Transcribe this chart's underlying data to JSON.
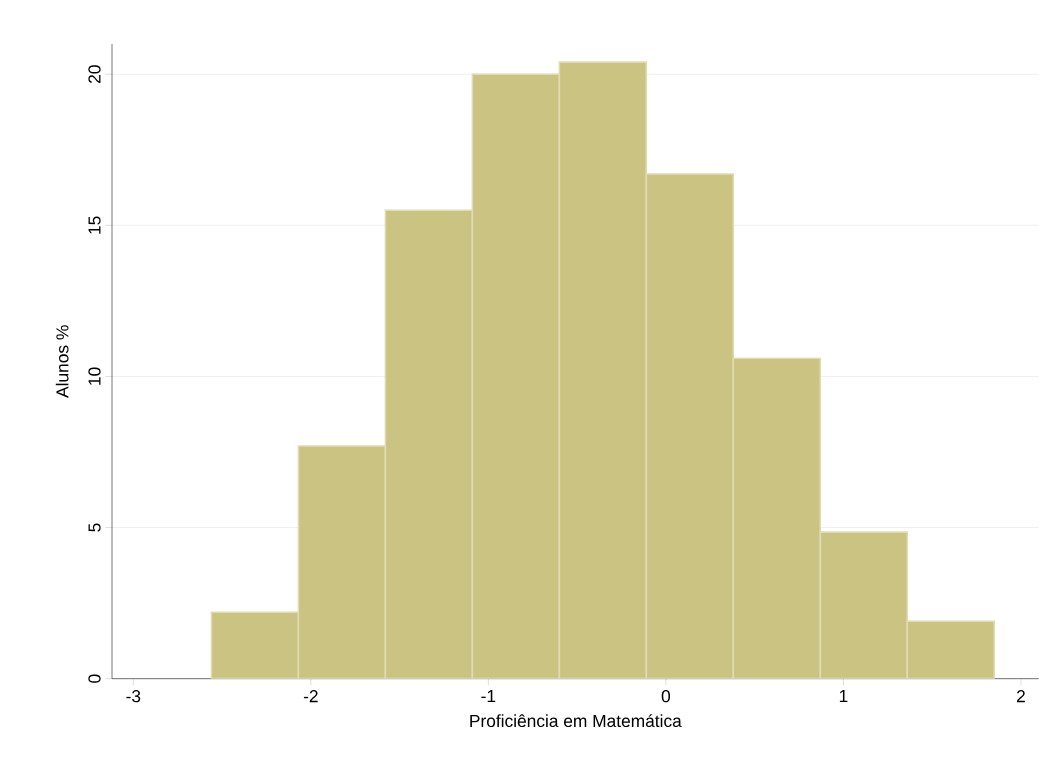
{
  "chart_data": {
    "type": "histogram",
    "xlabel": "Proficiência em Matemática",
    "ylabel": "Alunos %",
    "bins": [
      -2.56,
      -2.07,
      -1.58,
      -1.09,
      -0.6,
      -0.11,
      0.38,
      0.87,
      1.36,
      1.85
    ],
    "values": [
      2.2,
      7.7,
      15.5,
      20.0,
      20.4,
      16.7,
      10.6,
      4.85,
      1.9
    ],
    "color": "#cbc382",
    "xlim": [
      -3.12,
      2.1
    ],
    "xticks": [
      -3,
      -2,
      -1,
      0,
      1,
      2
    ],
    "ylim": [
      0,
      21
    ],
    "yticks": [
      0,
      5,
      10,
      15,
      20
    ],
    "grid": "y"
  }
}
